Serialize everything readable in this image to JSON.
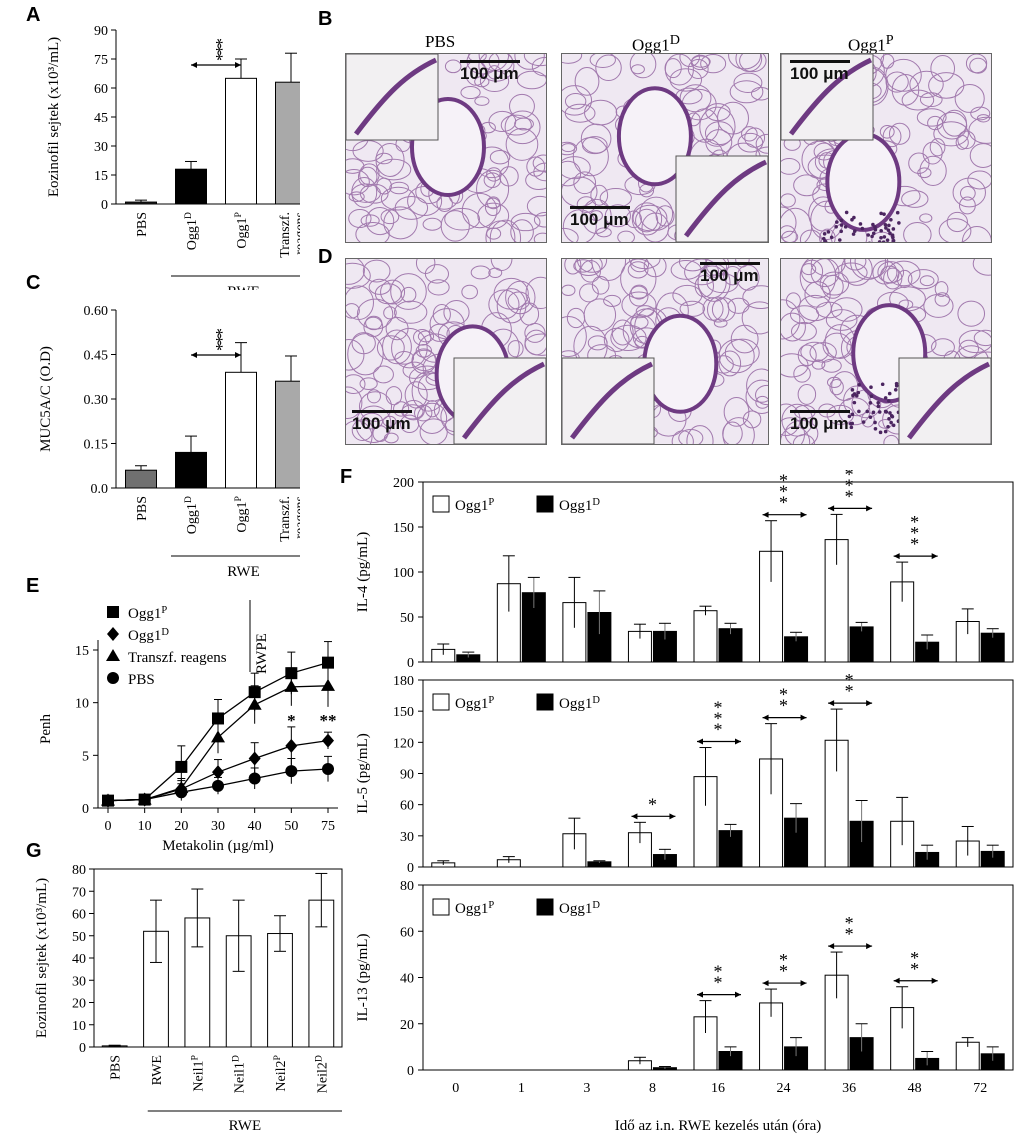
{
  "panel_letters": {
    "A": "A",
    "B": "B",
    "C": "C",
    "D": "D",
    "E": "E",
    "F": "F",
    "G": "G"
  },
  "histology": {
    "columns": [
      "PBS",
      "Ogg1D",
      "Ogg1P"
    ],
    "scale_bar": "100 μm"
  },
  "chart_data": [
    {
      "id": "A",
      "type": "bar",
      "ylabel": "Eozinofil sejtek (x10³/mL)",
      "ylim": [
        0,
        90
      ],
      "yticks": [
        0,
        15,
        30,
        45,
        60,
        75,
        90
      ],
      "categories": [
        "PBS",
        "Ogg1D",
        "Ogg1P",
        "Transzf. reagens"
      ],
      "values": [
        1,
        18,
        65,
        63
      ],
      "errors": [
        1,
        4,
        10,
        15
      ],
      "colors": [
        "#222222",
        "#000000",
        "#ffffff",
        "#a9a9a9"
      ],
      "group_label": "RWE",
      "significance": "***"
    },
    {
      "id": "C",
      "type": "bar",
      "ylabel": "MUC5A/C (O.D)",
      "ylim": [
        0,
        0.6
      ],
      "yticks": [
        "0.0",
        "0.15",
        "0.30",
        "0.45",
        "0.60"
      ],
      "categories": [
        "PBS",
        "Ogg1D",
        "Ogg1P",
        "Transzf. reagens"
      ],
      "values": [
        0.06,
        0.12,
        0.39,
        0.36
      ],
      "errors": [
        0.015,
        0.055,
        0.1,
        0.085
      ],
      "colors": [
        "#707070",
        "#000000",
        "#ffffff",
        "#a9a9a9"
      ],
      "group_label": "RWE",
      "significance": "***"
    },
    {
      "id": "E",
      "type": "line",
      "ylabel": "Penh",
      "xlabel": "Metakolin (µg/ml)",
      "ylim": [
        0,
        15
      ],
      "yticks": [
        0,
        5,
        10,
        15
      ],
      "x": [
        "0",
        "10",
        "20",
        "30",
        "40",
        "50",
        "75"
      ],
      "annotation": "RWPE",
      "series": [
        {
          "name": "Ogg1P",
          "marker": "square",
          "values": [
            0.7,
            0.8,
            3.9,
            8.5,
            11.0,
            12.8,
            13.8
          ],
          "errors": [
            0.4,
            0.4,
            2.0,
            1.8,
            1.8,
            2.0,
            2.0
          ]
        },
        {
          "name": "Ogg1D",
          "marker": "diamond",
          "values": [
            0.7,
            0.8,
            1.8,
            3.4,
            4.7,
            5.9,
            6.4
          ],
          "errors": [
            0.3,
            0.3,
            0.8,
            1.2,
            1.5,
            1.8,
            0.8
          ]
        },
        {
          "name": "Transzf. reagens",
          "marker": "triangle",
          "values": [
            0.7,
            0.8,
            1.9,
            6.7,
            9.8,
            11.5,
            11.6
          ],
          "errors": [
            0.3,
            0.3,
            0.9,
            1.5,
            1.8,
            1.8,
            2.0
          ]
        },
        {
          "name": "PBS",
          "marker": "circle",
          "values": [
            0.7,
            0.8,
            1.5,
            2.1,
            2.8,
            3.5,
            3.7
          ],
          "errors": [
            0.3,
            0.3,
            0.8,
            0.8,
            1.0,
            1.2,
            1.2
          ]
        }
      ],
      "significance": [
        {
          "x": "50",
          "label": "*"
        },
        {
          "x": "75",
          "label": "**"
        }
      ]
    },
    {
      "id": "G",
      "type": "bar",
      "ylabel": "Eozinofil sejtek (x10³/mL)",
      "ylim": [
        0,
        80
      ],
      "yticks": [
        0,
        10,
        20,
        30,
        40,
        50,
        60,
        70,
        80
      ],
      "categories": [
        "PBS",
        "RWE",
        "Neil1P",
        "Neil1D",
        "Neil2P",
        "Neil2D"
      ],
      "values": [
        0.5,
        52,
        58,
        50,
        51,
        66
      ],
      "errors": [
        0.3,
        14,
        13,
        16,
        8,
        12
      ],
      "group_label": "RWE"
    },
    {
      "id": "F1",
      "type": "bar",
      "ylabel": "IL-4 (pg/mL)",
      "ylim": [
        0,
        200
      ],
      "yticks": [
        0,
        50,
        100,
        150,
        200
      ],
      "categories": [
        "0",
        "1",
        "3",
        "8",
        "16",
        "24",
        "36",
        "48",
        "72"
      ],
      "series": [
        {
          "name": "Ogg1P",
          "values": [
            14,
            87,
            66,
            34,
            57,
            123,
            136,
            89,
            45
          ],
          "errors": [
            6,
            31,
            28,
            8,
            5,
            34,
            28,
            22,
            14
          ]
        },
        {
          "name": "Ogg1D",
          "values": [
            8,
            77,
            55,
            34,
            37,
            28,
            39,
            22,
            32
          ],
          "errors": [
            3,
            17,
            24,
            9,
            6,
            5,
            5,
            8,
            5
          ]
        }
      ],
      "significance": [
        {
          "category": "24",
          "label": "***"
        },
        {
          "category": "36",
          "label": "***"
        },
        {
          "category": "48",
          "label": "***"
        }
      ]
    },
    {
      "id": "F2",
      "type": "bar",
      "ylabel": "IL-5 (pg/mL)",
      "ylim": [
        0,
        180
      ],
      "yticks": [
        0,
        30,
        60,
        90,
        120,
        150,
        180
      ],
      "categories": [
        "0",
        "1",
        "3",
        "8",
        "16",
        "24",
        "36",
        "48",
        "72"
      ],
      "series": [
        {
          "name": "Ogg1P",
          "values": [
            4,
            7,
            32,
            33,
            87,
            104,
            122,
            44,
            25
          ],
          "errors": [
            2,
            3,
            15,
            10,
            28,
            34,
            30,
            23,
            14
          ]
        },
        {
          "name": "Ogg1D",
          "values": [
            0,
            0,
            5,
            12,
            35,
            47,
            44,
            14,
            15
          ],
          "errors": [
            0,
            0,
            1,
            5,
            6,
            14,
            20,
            7,
            6
          ]
        }
      ],
      "significance": [
        {
          "category": "8",
          "label": "*"
        },
        {
          "category": "16",
          "label": "***"
        },
        {
          "category": "24",
          "label": "**"
        },
        {
          "category": "36",
          "label": "**"
        }
      ]
    },
    {
      "id": "F3",
      "type": "bar",
      "ylabel": "IL-13 (pg/mL)",
      "ylim": [
        0,
        80
      ],
      "yticks": [
        0,
        20,
        40,
        60,
        80
      ],
      "categories": [
        "0",
        "1",
        "3",
        "8",
        "16",
        "24",
        "36",
        "48",
        "72"
      ],
      "series": [
        {
          "name": "Ogg1P",
          "values": [
            0,
            0,
            0,
            4,
            23,
            29,
            41,
            27,
            12
          ],
          "errors": [
            0,
            0,
            0,
            1.5,
            7,
            6,
            10,
            9,
            2
          ]
        },
        {
          "name": "Ogg1D",
          "values": [
            0,
            0,
            0,
            1,
            8,
            10,
            14,
            5,
            7
          ],
          "errors": [
            0,
            0,
            0,
            0.5,
            2,
            4,
            6,
            3,
            3
          ]
        }
      ],
      "significance": [
        {
          "category": "16",
          "label": "**"
        },
        {
          "category": "24",
          "label": "**"
        },
        {
          "category": "36",
          "label": "**"
        },
        {
          "category": "48",
          "label": "**"
        }
      ]
    }
  ],
  "f_xlabel": "Idő az i.n. RWE kezelés után (óra)"
}
